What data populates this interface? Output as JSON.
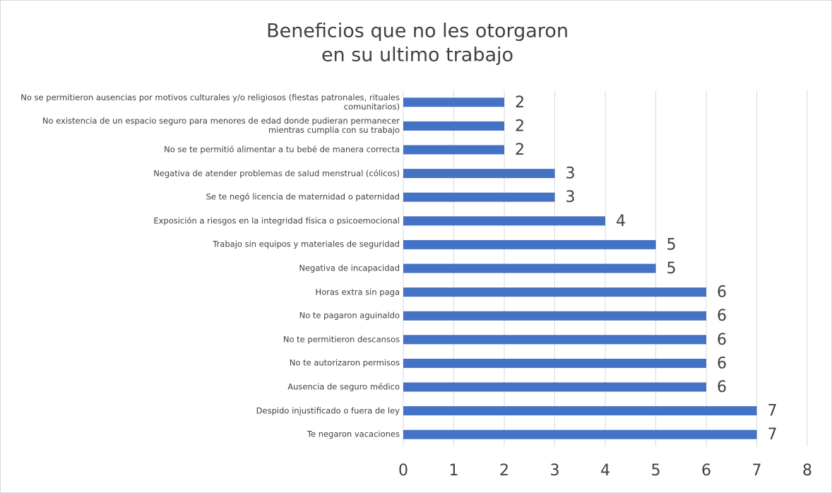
{
  "chart_data": {
    "type": "barh",
    "title": [
      "Beneficios que no les otorgaron",
      "en su ultimo trabajo"
    ],
    "categories": [
      "No se permitieron ausencias por motivos culturales y/o religiosos (fiestas patronales, rituales comunitarios)",
      "No existencia de un espacio seguro para menores de edad donde pudieran permanecer mientras cumplía con su trabajo",
      "No se te permitió alimentar a tu bebé de manera correcta",
      "Negativa de atender problemas de salud menstrual (cólicos)",
      "Se te negó licencia de maternidad o paternidad",
      "Exposición a riesgos en la integridad física o psicoemocional",
      "Trabajo sin equipos y materiales de seguridad",
      "Negativa de incapacidad",
      "Horas extra sin paga",
      "No te pagaron aguinaldo",
      "No te permitieron descansos",
      "No te autorizaron permisos",
      "Ausencia de seguro médico",
      "Despido injustificado o fuera de ley",
      "Te negaron vacaciones"
    ],
    "values": [
      2,
      2,
      2,
      3,
      3,
      4,
      5,
      5,
      6,
      6,
      6,
      6,
      6,
      7,
      7
    ],
    "color": "#4472c4",
    "xlim": [
      0,
      8
    ],
    "xticks": [
      0,
      1,
      2,
      3,
      4,
      5,
      6,
      7,
      8
    ],
    "grid": true
  }
}
